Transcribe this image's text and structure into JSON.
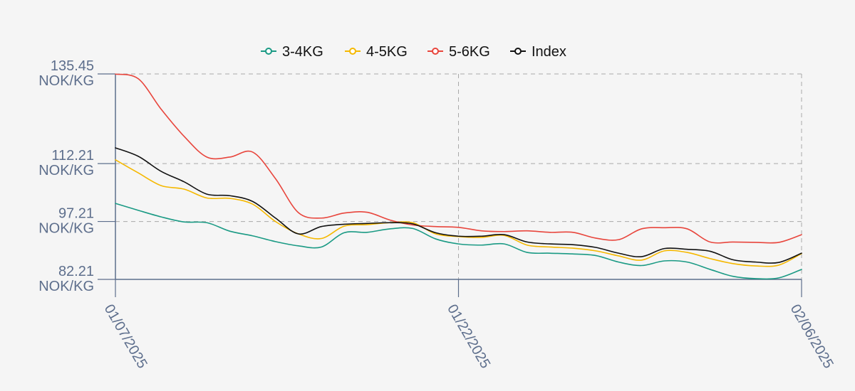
{
  "chart_data": {
    "type": "line",
    "title": "",
    "xlabel": "",
    "ylabel": "",
    "x_tick_labels": [
      "01/07/2025",
      "01/22/2025",
      "02/06/2025"
    ],
    "y_tick_labels": [
      {
        "value": 135.45,
        "line1": "135.45",
        "line2": "NOK/KG"
      },
      {
        "value": 112.21,
        "line1": "112.21",
        "line2": "NOK/KG"
      },
      {
        "value": 97.21,
        "line1": "97.21",
        "line2": "NOK/KG"
      },
      {
        "value": 82.21,
        "line1": "82.21",
        "line2": "NOK/KG"
      }
    ],
    "ylim": [
      82.21,
      135.45
    ],
    "xlim": [
      "2025-01-07",
      "2025-02-06"
    ],
    "grid": true,
    "legend_position": "top-center",
    "dates": [
      "2025-01-07",
      "2025-01-08",
      "2025-01-09",
      "2025-01-10",
      "2025-01-11",
      "2025-01-12",
      "2025-01-13",
      "2025-01-14",
      "2025-01-15",
      "2025-01-16",
      "2025-01-17",
      "2025-01-18",
      "2025-01-19",
      "2025-01-20",
      "2025-01-21",
      "2025-01-22",
      "2025-01-23",
      "2025-01-24",
      "2025-01-25",
      "2025-01-26",
      "2025-01-27",
      "2025-01-28",
      "2025-01-29",
      "2025-01-30",
      "2025-01-31",
      "2025-02-01",
      "2025-02-02",
      "2025-02-03",
      "2025-02-04",
      "2025-02-05",
      "2025-02-06"
    ],
    "series": [
      {
        "name": "3-4KG",
        "color": "#1a9a84",
        "values": [
          101.9,
          100.1,
          98.4,
          97.1,
          96.9,
          94.7,
          93.5,
          92.0,
          90.9,
          90.6,
          94.3,
          94.4,
          95.3,
          95.4,
          92.7,
          91.4,
          91.1,
          91.4,
          89.2,
          89.0,
          88.8,
          88.4,
          86.7,
          85.8,
          87.0,
          86.7,
          84.8,
          83.0,
          82.4,
          82.6,
          84.8
        ]
      },
      {
        "name": "4-5KG",
        "color": "#f5b800",
        "values": [
          113.2,
          109.8,
          106.5,
          105.6,
          103.3,
          103.2,
          101.7,
          97.2,
          94.0,
          92.8,
          96.0,
          96.4,
          96.9,
          96.9,
          94.0,
          93.3,
          93.1,
          93.6,
          91.1,
          90.6,
          90.3,
          89.6,
          88.3,
          87.2,
          89.6,
          89.2,
          87.6,
          86.3,
          85.7,
          85.9,
          88.9
        ]
      },
      {
        "name": "5-6KG",
        "color": "#e8453c",
        "values": [
          135.4,
          134.2,
          126.3,
          119.3,
          113.9,
          113.9,
          115.2,
          108.3,
          99.5,
          98.1,
          99.4,
          99.6,
          97.6,
          96.3,
          95.9,
          95.7,
          94.8,
          94.6,
          94.8,
          94.4,
          94.4,
          92.9,
          92.5,
          95.3,
          95.6,
          95.3,
          91.9,
          91.9,
          91.8,
          91.8,
          93.8
        ]
      },
      {
        "name": "Index",
        "color": "#111111",
        "values": [
          116.3,
          114.1,
          110.2,
          107.5,
          104.3,
          103.9,
          102.4,
          98.1,
          94.0,
          95.9,
          96.5,
          96.7,
          96.9,
          96.6,
          94.3,
          93.4,
          93.4,
          93.8,
          91.9,
          91.4,
          91.2,
          90.5,
          89.0,
          88.1,
          90.2,
          90.0,
          89.5,
          87.3,
          86.7,
          86.6,
          89.0
        ]
      }
    ]
  }
}
